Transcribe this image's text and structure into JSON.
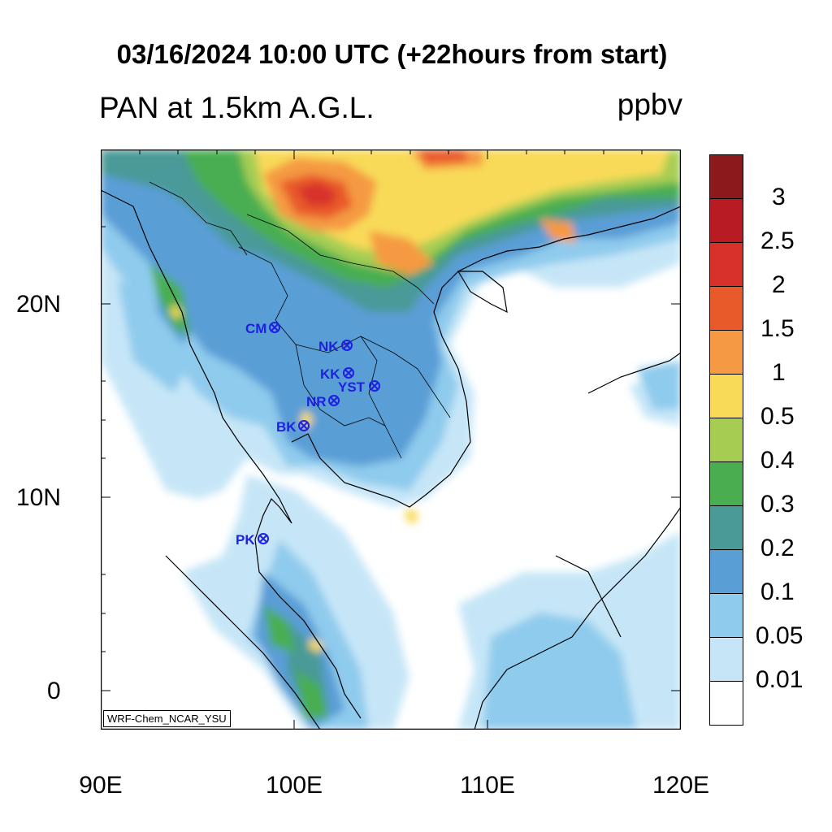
{
  "header": {
    "title": "03/16/2024 10:00 UTC (+22hours from start)",
    "subtitle": "PAN at 1.5km A.G.L.",
    "units": "ppbv"
  },
  "axes": {
    "lat_labels": [
      "20N",
      "10N",
      "0"
    ],
    "lon_labels": [
      "90E",
      "100E",
      "110E",
      "120E"
    ]
  },
  "colorbar": {
    "labels": [
      "3",
      "2.5",
      "2",
      "1.5",
      "1",
      "0.5",
      "0.4",
      "0.3",
      "0.2",
      "0.1",
      "0.05",
      "0.01"
    ],
    "colors": [
      "#8c1a1c",
      "#b81c22",
      "#d8312a",
      "#e85a2a",
      "#f59a43",
      "#f8da58",
      "#a6cd52",
      "#4aae51",
      "#4a9a98",
      "#5a9ed6",
      "#8fcbed",
      "#c6e6f7",
      "#ffffff"
    ]
  },
  "stations": [
    {
      "code": "CM"
    },
    {
      "code": "NK"
    },
    {
      "code": "KK"
    },
    {
      "code": "YST"
    },
    {
      "code": "NR"
    },
    {
      "code": "BK"
    },
    {
      "code": "PK"
    }
  ],
  "credit": "WRF-Chem_NCAR_YSU"
}
